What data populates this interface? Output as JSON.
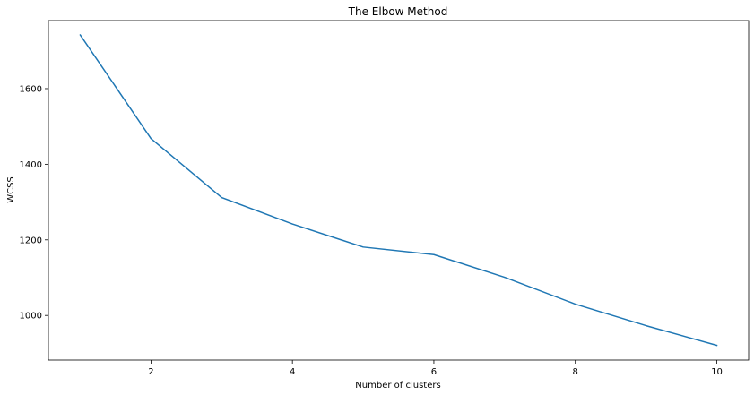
{
  "chart_data": {
    "type": "line",
    "title": "The Elbow Method",
    "xlabel": "Number of clusters",
    "ylabel": "WCSS",
    "x": [
      1,
      2,
      3,
      4,
      5,
      6,
      7,
      8,
      9,
      10
    ],
    "series": [
      {
        "values": [
          1742,
          1468,
          1312,
          1242,
          1181,
          1161,
          1101,
          1030,
          973,
          921
        ],
        "color": "#1f77b4"
      }
    ],
    "xlim": [
      0.55,
      10.45
    ],
    "ylim": [
      882,
      1780
    ],
    "xticks": [
      2,
      4,
      6,
      8,
      10
    ],
    "yticks": [
      1000,
      1200,
      1400,
      1600
    ],
    "grid": false,
    "legend": "none"
  }
}
